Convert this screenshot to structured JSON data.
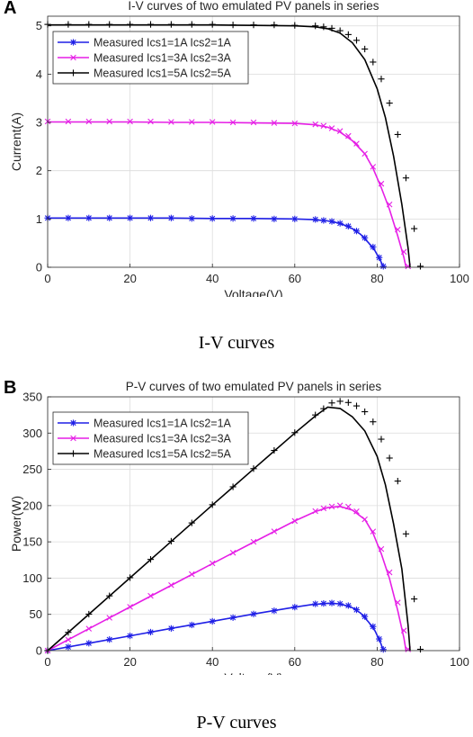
{
  "figure_a": {
    "panel_label": "A",
    "caption": "I-V curves"
  },
  "figure_b": {
    "panel_label": "B",
    "caption": "P-V curves"
  },
  "chart_data": [
    {
      "type": "line",
      "title": "I-V curves of two emulated PV panels in series",
      "xlabel": "Voltage(V)",
      "ylabel": "Current(A)",
      "xlim": [
        0,
        100
      ],
      "ylim": [
        0,
        5.2
      ],
      "xticks": [
        0,
        20,
        40,
        60,
        80,
        100
      ],
      "yticks": [
        0,
        1,
        2,
        3,
        4,
        5
      ],
      "grid": true,
      "legend_position": "upper-left",
      "series": [
        {
          "name": "Measured Ics1=1A Ics2=1A",
          "color": "#1f1fe6",
          "marker": "star",
          "line_x": [
            0,
            10,
            20,
            30,
            40,
            50,
            60,
            64,
            68,
            71,
            74,
            76,
            78,
            79.5,
            80.8,
            81.5
          ],
          "line_y": [
            1.02,
            1.02,
            1.02,
            1.02,
            1.01,
            1.01,
            1.0,
            0.99,
            0.96,
            0.91,
            0.8,
            0.68,
            0.5,
            0.34,
            0.14,
            0
          ],
          "marker_x": [
            0,
            5,
            10,
            15,
            20,
            25,
            30,
            35,
            40,
            45,
            50,
            55,
            60,
            65,
            67,
            69,
            71,
            73,
            75,
            77,
            79,
            80.5,
            81.5
          ],
          "marker_y": [
            1.02,
            1.02,
            1.02,
            1.02,
            1.02,
            1.02,
            1.02,
            1.01,
            1.01,
            1.01,
            1.01,
            1.0,
            1.0,
            0.99,
            0.97,
            0.95,
            0.91,
            0.85,
            0.75,
            0.61,
            0.42,
            0.2,
            0.02
          ]
        },
        {
          "name": "Measured Ics1=3A Ics2=3A",
          "color": "#e61fe6",
          "marker": "x",
          "line_x": [
            0,
            10,
            20,
            30,
            40,
            50,
            60,
            65,
            68,
            71,
            74,
            77,
            79,
            81,
            83,
            85,
            86.5,
            87
          ],
          "line_y": [
            3.01,
            3.01,
            3.01,
            3.0,
            3.0,
            2.99,
            2.98,
            2.95,
            2.9,
            2.8,
            2.62,
            2.35,
            2.05,
            1.65,
            1.2,
            0.65,
            0.2,
            0
          ],
          "marker_x": [
            0,
            5,
            10,
            15,
            20,
            25,
            30,
            35,
            40,
            45,
            50,
            55,
            60,
            65,
            67,
            69,
            71,
            73,
            75,
            77,
            79,
            81,
            83,
            85,
            86.5,
            87.5
          ],
          "marker_y": [
            3.02,
            3.02,
            3.02,
            3.02,
            3.02,
            3.02,
            3.01,
            3.01,
            3.01,
            3.0,
            3.0,
            2.99,
            2.98,
            2.96,
            2.93,
            2.88,
            2.82,
            2.72,
            2.56,
            2.35,
            2.08,
            1.73,
            1.3,
            0.78,
            0.32,
            0.02
          ]
        },
        {
          "name": "Measured Ics1=5A Ics2=5A",
          "color": "#000000",
          "marker": "plus",
          "line_x": [
            0,
            10,
            20,
            30,
            40,
            50,
            60,
            65,
            68,
            71,
            74,
            77,
            80,
            82,
            84,
            86,
            87.5,
            88
          ],
          "line_y": [
            5.02,
            5.02,
            5.02,
            5.02,
            5.02,
            5.01,
            5.0,
            4.98,
            4.94,
            4.85,
            4.65,
            4.3,
            3.7,
            3.1,
            2.3,
            1.3,
            0.4,
            0
          ],
          "marker_x": [
            0,
            5,
            10,
            15,
            20,
            25,
            30,
            35,
            40,
            45,
            50,
            55,
            60,
            65,
            67,
            69,
            71,
            73,
            75,
            77,
            79,
            81,
            83,
            85,
            87,
            89,
            90.5
          ],
          "marker_y": [
            5.03,
            5.03,
            5.03,
            5.03,
            5.03,
            5.03,
            5.03,
            5.03,
            5.03,
            5.02,
            5.02,
            5.02,
            5.01,
            5.0,
            4.98,
            4.95,
            4.9,
            4.82,
            4.7,
            4.52,
            4.25,
            3.9,
            3.4,
            2.75,
            1.85,
            0.8,
            0.02
          ]
        }
      ]
    },
    {
      "type": "line",
      "title": "P-V curves of two emulated PV panels in series",
      "xlabel": "Voltage(V)",
      "ylabel": "Power(W)",
      "xlim": [
        0,
        100
      ],
      "ylim": [
        0,
        350
      ],
      "xticks": [
        0,
        20,
        40,
        60,
        80,
        100
      ],
      "yticks": [
        0,
        50,
        100,
        150,
        200,
        250,
        300,
        350
      ],
      "grid": true,
      "legend_position": "upper-left",
      "series": [
        {
          "name": "Measured Ics1=1A Ics2=1A",
          "color": "#1f1fe6",
          "marker": "star",
          "line_x": [
            0,
            10,
            20,
            30,
            40,
            50,
            60,
            64,
            68,
            71,
            74,
            76,
            78,
            79.5,
            80.8,
            81.5
          ],
          "line_y": [
            0,
            10.2,
            20.4,
            30.6,
            40.4,
            50.5,
            60,
            63.4,
            65.3,
            64.6,
            59.2,
            51.7,
            39,
            27,
            11.3,
            0
          ],
          "marker_x": [
            0,
            5,
            10,
            15,
            20,
            25,
            30,
            35,
            40,
            45,
            50,
            55,
            60,
            65,
            67,
            69,
            71,
            73,
            75,
            77,
            79,
            80.5,
            81.5
          ],
          "marker_y": [
            0,
            5.1,
            10.2,
            15.3,
            20.4,
            25.5,
            30.6,
            35.4,
            40.4,
            45.5,
            50.5,
            55,
            60,
            64.4,
            65,
            65.6,
            64.6,
            62.1,
            56.3,
            47,
            33.2,
            16.1,
            1.6
          ]
        },
        {
          "name": "Measured Ics1=3A Ics2=3A",
          "color": "#e61fe6",
          "marker": "x",
          "line_x": [
            0,
            10,
            20,
            30,
            40,
            50,
            60,
            65,
            68,
            71,
            74,
            77,
            79,
            81,
            83,
            85,
            86.5,
            87
          ],
          "line_y": [
            0,
            30.1,
            60.2,
            90,
            120,
            149.5,
            178.8,
            191.8,
            197.2,
            198.8,
            193.9,
            181,
            162,
            133.7,
            99.6,
            55.3,
            17.3,
            0
          ],
          "marker_x": [
            0,
            5,
            10,
            15,
            20,
            25,
            30,
            35,
            40,
            45,
            50,
            55,
            60,
            65,
            67,
            69,
            71,
            73,
            75,
            77,
            79,
            81,
            83,
            85,
            86.5,
            87.5
          ],
          "marker_y": [
            0,
            15.1,
            30.2,
            45.3,
            60.4,
            75.5,
            90.3,
            105.4,
            120.4,
            135,
            150,
            164.5,
            178.8,
            192.4,
            196.3,
            198.7,
            200.2,
            198.6,
            192,
            181,
            164.3,
            140.1,
            107.9,
            66.3,
            27.7,
            1.8
          ]
        },
        {
          "name": "Measured Ics1=5A Ics2=5A",
          "color": "#000000",
          "marker": "plus",
          "line_x": [
            0,
            10,
            20,
            30,
            40,
            50,
            60,
            65,
            68,
            71,
            74,
            77,
            80,
            82,
            84,
            86,
            87.5,
            88
          ],
          "line_y": [
            0,
            50.2,
            100.4,
            150.6,
            200.8,
            250.5,
            300,
            323.7,
            335.9,
            334,
            322.4,
            303,
            268,
            228.6,
            174.6,
            112.4,
            35,
            0
          ],
          "marker_x": [
            0,
            5,
            10,
            15,
            20,
            25,
            30,
            35,
            40,
            45,
            50,
            55,
            60,
            65,
            67,
            69,
            71,
            73,
            75,
            77,
            79,
            81,
            83,
            85,
            87,
            89,
            90.5
          ],
          "marker_y": [
            0,
            25.2,
            50.3,
            75.5,
            100.6,
            125.8,
            150.9,
            176.1,
            201.2,
            225.9,
            251,
            276.1,
            300.6,
            325,
            333.7,
            341.6,
            343.9,
            342.2,
            337.5,
            329.5,
            315.6,
            291.6,
            265.6,
            233.8,
            161,
            71.2,
            1.8
          ]
        }
      ]
    }
  ]
}
